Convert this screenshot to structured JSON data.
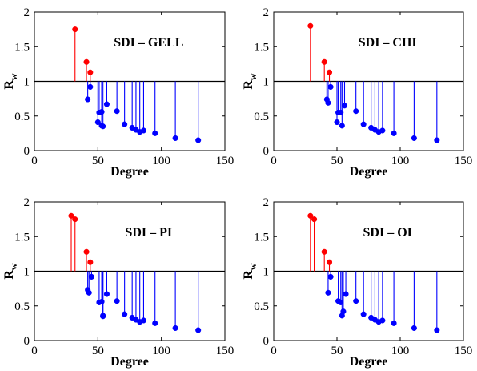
{
  "chart_data": [
    {
      "type": "stem",
      "title": "SDI – GELL",
      "xlabel": "Degree",
      "ylabel": "R",
      "ylabel_sub": "w",
      "xlim": [
        0,
        150
      ],
      "ylim": [
        0,
        2
      ],
      "xticks": [
        "0",
        "50",
        "100",
        "150"
      ],
      "yticks": [
        "0",
        "0.5",
        "1",
        "1.5",
        "2"
      ],
      "baseline": 1,
      "grid": false,
      "colors": {
        "above": "#ff0000",
        "below": "#0000ff",
        "baseline": "#000000"
      },
      "points": [
        {
          "x": 32,
          "y": 1.75
        },
        {
          "x": 41,
          "y": 1.28
        },
        {
          "x": 44,
          "y": 1.13
        },
        {
          "x": 42,
          "y": 0.74
        },
        {
          "x": 44,
          "y": 0.92
        },
        {
          "x": 50,
          "y": 0.41
        },
        {
          "x": 51,
          "y": 0.55
        },
        {
          "x": 53,
          "y": 0.56
        },
        {
          "x": 53,
          "y": 0.36
        },
        {
          "x": 54,
          "y": 0.35
        },
        {
          "x": 57,
          "y": 0.67
        },
        {
          "x": 65,
          "y": 0.57
        },
        {
          "x": 71,
          "y": 0.38
        },
        {
          "x": 77,
          "y": 0.33
        },
        {
          "x": 80,
          "y": 0.3
        },
        {
          "x": 83,
          "y": 0.27
        },
        {
          "x": 86,
          "y": 0.29
        },
        {
          "x": 95,
          "y": 0.25
        },
        {
          "x": 111,
          "y": 0.18
        },
        {
          "x": 129,
          "y": 0.15
        }
      ]
    },
    {
      "type": "stem",
      "title": "SDI – CHI",
      "xlabel": "Degree",
      "ylabel": "R",
      "ylabel_sub": "w",
      "xlim": [
        0,
        150
      ],
      "ylim": [
        0,
        2
      ],
      "xticks": [
        "0",
        "50",
        "100",
        "150"
      ],
      "yticks": [
        "0",
        "0.5",
        "1",
        "1.5",
        "2"
      ],
      "baseline": 1,
      "grid": false,
      "colors": {
        "above": "#ff0000",
        "below": "#0000ff",
        "baseline": "#000000"
      },
      "points": [
        {
          "x": 29,
          "y": 1.8
        },
        {
          "x": 40,
          "y": 1.28
        },
        {
          "x": 44,
          "y": 1.13
        },
        {
          "x": 42,
          "y": 0.74
        },
        {
          "x": 43,
          "y": 0.69
        },
        {
          "x": 45,
          "y": 0.92
        },
        {
          "x": 50,
          "y": 0.41
        },
        {
          "x": 51,
          "y": 0.55
        },
        {
          "x": 53,
          "y": 0.55
        },
        {
          "x": 54,
          "y": 0.36
        },
        {
          "x": 56,
          "y": 0.65
        },
        {
          "x": 65,
          "y": 0.57
        },
        {
          "x": 71,
          "y": 0.38
        },
        {
          "x": 77,
          "y": 0.33
        },
        {
          "x": 80,
          "y": 0.3
        },
        {
          "x": 83,
          "y": 0.27
        },
        {
          "x": 86,
          "y": 0.29
        },
        {
          "x": 95,
          "y": 0.25
        },
        {
          "x": 111,
          "y": 0.18
        },
        {
          "x": 129,
          "y": 0.15
        }
      ]
    },
    {
      "type": "stem",
      "title": "SDI – PI",
      "xlabel": "Degree",
      "ylabel": "R",
      "ylabel_sub": "w",
      "xlim": [
        0,
        150
      ],
      "ylim": [
        0,
        2
      ],
      "xticks": [
        "0",
        "50",
        "100",
        "150"
      ],
      "yticks": [
        "0",
        "0.5",
        "1",
        "1.5",
        "2"
      ],
      "baseline": 1,
      "grid": false,
      "colors": {
        "above": "#ff0000",
        "below": "#0000ff",
        "baseline": "#000000"
      },
      "points": [
        {
          "x": 29,
          "y": 1.8
        },
        {
          "x": 32,
          "y": 1.75
        },
        {
          "x": 41,
          "y": 1.28
        },
        {
          "x": 44,
          "y": 1.13
        },
        {
          "x": 42,
          "y": 0.73
        },
        {
          "x": 43,
          "y": 0.69
        },
        {
          "x": 45,
          "y": 0.92
        },
        {
          "x": 51,
          "y": 0.55
        },
        {
          "x": 53,
          "y": 0.56
        },
        {
          "x": 54,
          "y": 0.36
        },
        {
          "x": 54,
          "y": 0.35
        },
        {
          "x": 57,
          "y": 0.67
        },
        {
          "x": 65,
          "y": 0.57
        },
        {
          "x": 71,
          "y": 0.38
        },
        {
          "x": 77,
          "y": 0.33
        },
        {
          "x": 80,
          "y": 0.3
        },
        {
          "x": 83,
          "y": 0.27
        },
        {
          "x": 86,
          "y": 0.29
        },
        {
          "x": 95,
          "y": 0.25
        },
        {
          "x": 111,
          "y": 0.18
        },
        {
          "x": 129,
          "y": 0.15
        }
      ]
    },
    {
      "type": "stem",
      "title": "SDI – OI",
      "xlabel": "Degree",
      "ylabel": "R",
      "ylabel_sub": "w",
      "xlim": [
        0,
        150
      ],
      "ylim": [
        0,
        2
      ],
      "xticks": [
        "0",
        "50",
        "100",
        "150"
      ],
      "yticks": [
        "0",
        "0.5",
        "1",
        "1.5",
        "2"
      ],
      "baseline": 1,
      "grid": false,
      "colors": {
        "above": "#ff0000",
        "below": "#0000ff",
        "baseline": "#000000"
      },
      "points": [
        {
          "x": 29,
          "y": 1.8
        },
        {
          "x": 32,
          "y": 1.75
        },
        {
          "x": 40,
          "y": 1.28
        },
        {
          "x": 44,
          "y": 1.13
        },
        {
          "x": 43,
          "y": 0.69
        },
        {
          "x": 45,
          "y": 0.92
        },
        {
          "x": 51,
          "y": 0.57
        },
        {
          "x": 53,
          "y": 0.55
        },
        {
          "x": 54,
          "y": 0.36
        },
        {
          "x": 55,
          "y": 0.42
        },
        {
          "x": 57,
          "y": 0.67
        },
        {
          "x": 65,
          "y": 0.57
        },
        {
          "x": 71,
          "y": 0.38
        },
        {
          "x": 77,
          "y": 0.33
        },
        {
          "x": 80,
          "y": 0.3
        },
        {
          "x": 83,
          "y": 0.27
        },
        {
          "x": 86,
          "y": 0.29
        },
        {
          "x": 95,
          "y": 0.25
        },
        {
          "x": 111,
          "y": 0.18
        },
        {
          "x": 129,
          "y": 0.15
        }
      ]
    }
  ]
}
